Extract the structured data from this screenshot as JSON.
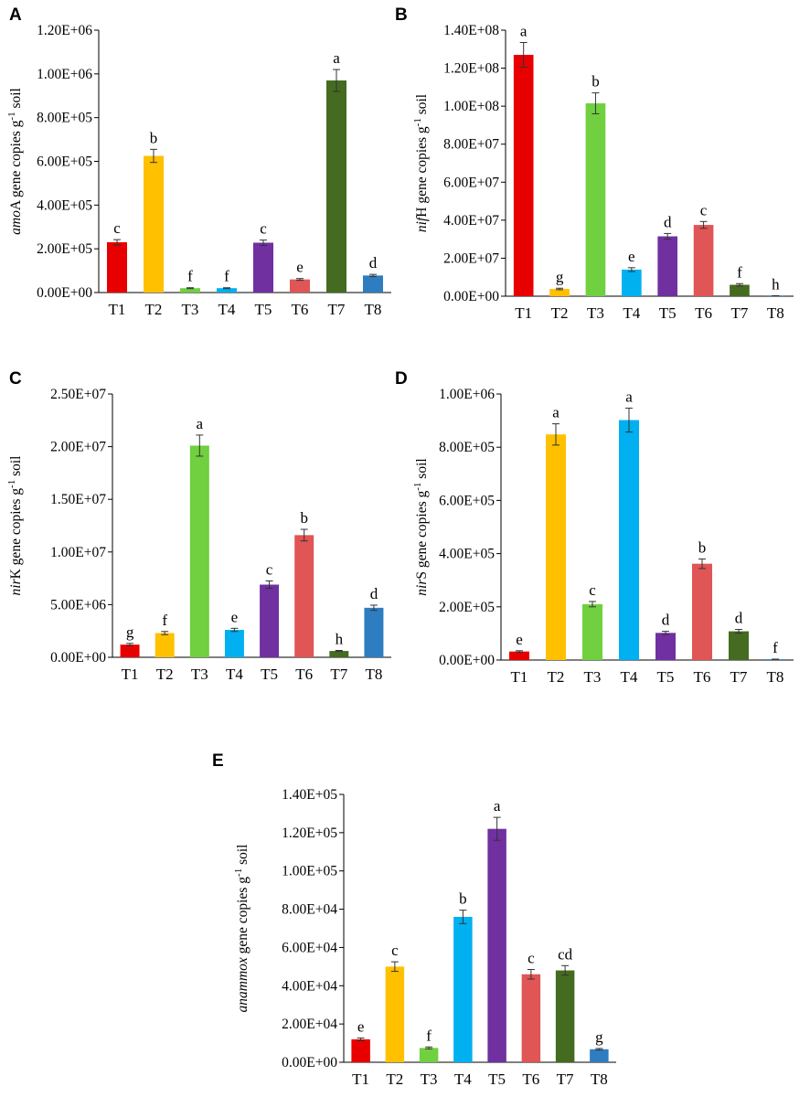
{
  "chart_data": [
    {
      "panel": "A",
      "type": "bar",
      "ylabel": {
        "gene": "amoA",
        "gene_italic": "amo",
        "gene_plain": "A",
        "suffix_pre": " gene copies g",
        "sup": "-1",
        "suffix_post": " soil"
      },
      "categories": [
        "T1",
        "T2",
        "T3",
        "T4",
        "T5",
        "T6",
        "T7",
        "T8"
      ],
      "values": [
        230000,
        625000,
        20000,
        20000,
        228000,
        60000,
        970000,
        78000
      ],
      "errors": [
        12000,
        30000,
        2000,
        2000,
        12000,
        4000,
        50000,
        5000
      ],
      "letters": [
        "c",
        "b",
        "f",
        "f",
        "c",
        "e",
        "a",
        "d"
      ],
      "ylim": [
        0,
        1200000
      ],
      "yticks": [
        "0.00E+00",
        "2.00E+05",
        "4.00E+05",
        "6.00E+05",
        "8.00E+05",
        "1.00E+06",
        "1.20E+06"
      ],
      "colors": [
        "#E80000",
        "#FFC000",
        "#70D040",
        "#00B0F0",
        "#7030A0",
        "#E05555",
        "#446B20",
        "#2E7DC0"
      ]
    },
    {
      "panel": "B",
      "type": "bar",
      "ylabel": {
        "gene": "nifH",
        "gene_italic": "nif",
        "gene_plain": "H",
        "suffix_pre": " gene copies g",
        "sup": "-1",
        "suffix_post": " soil"
      },
      "categories": [
        "T1",
        "T2",
        "T3",
        "T4",
        "T5",
        "T6",
        "T7",
        "T8"
      ],
      "values": [
        127000000,
        3800000,
        101500000,
        14000000,
        31500000,
        37500000,
        6000000,
        200000
      ],
      "errors": [
        6500000,
        400000,
        5500000,
        1000000,
        1500000,
        1800000,
        600000,
        50000
      ],
      "letters": [
        "a",
        "g",
        "b",
        "e",
        "d",
        "c",
        "f",
        "h"
      ],
      "ylim": [
        0,
        140000000
      ],
      "yticks": [
        "0.00E+00",
        "2.00E+07",
        "4.00E+07",
        "6.00E+07",
        "8.00E+07",
        "1.00E+08",
        "1.20E+08",
        "1.40E+08"
      ],
      "colors": [
        "#E80000",
        "#FFC000",
        "#70D040",
        "#00B0F0",
        "#7030A0",
        "#E05555",
        "#446B20",
        "#2E7DC0"
      ]
    },
    {
      "panel": "C",
      "type": "bar",
      "ylabel": {
        "gene": "nirK",
        "gene_italic": "nir",
        "gene_plain": "K",
        "suffix_pre": " gene copies g",
        "sup": "-1",
        "suffix_post": " soil"
      },
      "categories": [
        "T1",
        "T2",
        "T3",
        "T4",
        "T5",
        "T6",
        "T7",
        "T8"
      ],
      "values": [
        1200000,
        2300000,
        20100000,
        2600000,
        6900000,
        11600000,
        600000,
        4700000
      ],
      "errors": [
        120000,
        150000,
        1000000,
        150000,
        350000,
        550000,
        50000,
        250000
      ],
      "letters": [
        "g",
        "f",
        "a",
        "e",
        "c",
        "b",
        "h",
        "d"
      ],
      "ylim": [
        0,
        25000000
      ],
      "yticks": [
        "0.00E+00",
        "5.00E+06",
        "1.00E+07",
        "1.50E+07",
        "2.00E+07",
        "2.50E+07"
      ],
      "colors": [
        "#E80000",
        "#FFC000",
        "#70D040",
        "#00B0F0",
        "#7030A0",
        "#E05555",
        "#446B20",
        "#2E7DC0"
      ]
    },
    {
      "panel": "D",
      "type": "bar",
      "ylabel": {
        "gene": "nirS",
        "gene_italic": "nir",
        "gene_plain": "S",
        "suffix_pre": " gene copies g",
        "sup": "-1",
        "suffix_post": " soil"
      },
      "categories": [
        "T1",
        "T2",
        "T3",
        "T4",
        "T5",
        "T6",
        "T7",
        "T8"
      ],
      "values": [
        32000,
        848000,
        210000,
        902000,
        102000,
        362000,
        108000,
        3000
      ],
      "errors": [
        3000,
        40000,
        10000,
        45000,
        6000,
        18000,
        7000,
        500
      ],
      "letters": [
        "e",
        "a",
        "c",
        "a",
        "d",
        "b",
        "d",
        "f"
      ],
      "ylim": [
        0,
        1000000
      ],
      "yticks": [
        "0.00E+00",
        "2.00E+05",
        "4.00E+05",
        "6.00E+05",
        "8.00E+05",
        "1.00E+06"
      ],
      "colors": [
        "#E80000",
        "#FFC000",
        "#70D040",
        "#00B0F0",
        "#7030A0",
        "#E05555",
        "#446B20",
        "#2E7DC0"
      ]
    },
    {
      "panel": "E",
      "type": "bar",
      "ylabel": {
        "gene": "anammox",
        "gene_italic": "anammox",
        "gene_plain": "",
        "suffix_pre": " gene copies g",
        "sup": "-1",
        "suffix_post": " soil"
      },
      "categories": [
        "T1",
        "T2",
        "T3",
        "T4",
        "T5",
        "T6",
        "T7",
        "T8"
      ],
      "values": [
        12000,
        50000,
        7500,
        76000,
        122000,
        46000,
        48000,
        6800
      ],
      "errors": [
        700,
        2500,
        500,
        3500,
        6000,
        2500,
        2500,
        400
      ],
      "letters": [
        "e",
        "c",
        "f",
        "b",
        "a",
        "c",
        "cd",
        "g"
      ],
      "ylim": [
        0,
        140000
      ],
      "yticks": [
        "0.00E+00",
        "2.00E+04",
        "4.00E+04",
        "6.00E+04",
        "8.00E+04",
        "1.00E+05",
        "1.20E+05",
        "1.40E+05"
      ],
      "colors": [
        "#E80000",
        "#FFC000",
        "#70D040",
        "#00B0F0",
        "#7030A0",
        "#E05555",
        "#446B20",
        "#2E7DC0"
      ]
    }
  ]
}
